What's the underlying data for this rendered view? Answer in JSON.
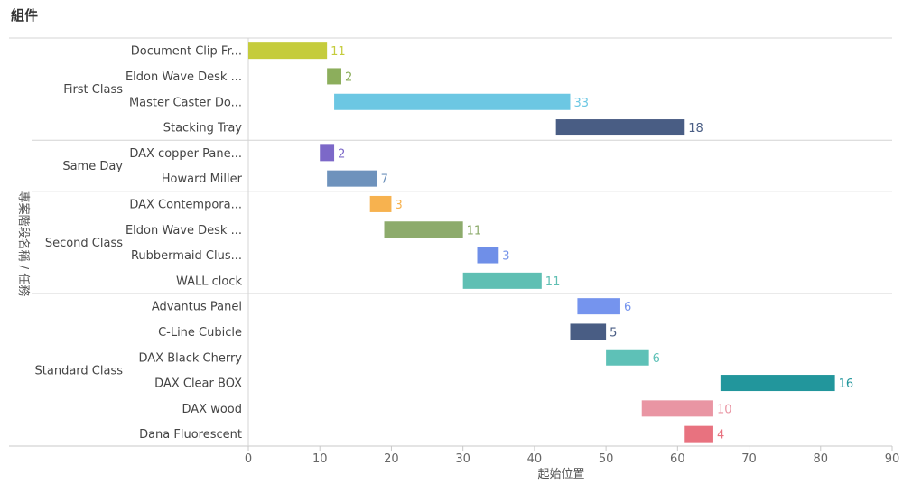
{
  "title": "組件",
  "chart_data": {
    "type": "bar",
    "subtype": "gantt",
    "xlabel": "起始位置",
    "ylabel": "專案階段名稱 / 任務",
    "xlim": [
      0,
      90
    ],
    "xticks": [
      0,
      10,
      20,
      30,
      40,
      50,
      60,
      70,
      80,
      90
    ],
    "groups": [
      {
        "name": "First Class",
        "tasks": [
          {
            "label": "Document Clip Fr...",
            "start": 0,
            "duration": 11,
            "color": "#c5cc3c"
          },
          {
            "label": "Eldon Wave Desk ...",
            "start": 11,
            "duration": 2,
            "color": "#8cae5c"
          },
          {
            "label": "Master Caster Do...",
            "start": 12,
            "duration": 33,
            "color": "#6cc7e3"
          },
          {
            "label": "Stacking Tray",
            "start": 43,
            "duration": 18,
            "color": "#495d84"
          }
        ]
      },
      {
        "name": "Same Day",
        "tasks": [
          {
            "label": "DAX copper Pane...",
            "start": 10,
            "duration": 2,
            "color": "#7c68c8"
          },
          {
            "label": "Howard Miller",
            "start": 11,
            "duration": 7,
            "color": "#6e92bc"
          }
        ]
      },
      {
        "name": "Second Class",
        "tasks": [
          {
            "label": "DAX Contempora...",
            "start": 17,
            "duration": 3,
            "color": "#f7b24f"
          },
          {
            "label": "Eldon Wave Desk ...",
            "start": 19,
            "duration": 11,
            "color": "#8dab6c"
          },
          {
            "label": "Rubbermaid Clus...",
            "start": 32,
            "duration": 3,
            "color": "#6f8fe8"
          },
          {
            "label": "WALL clock",
            "start": 30,
            "duration": 11,
            "color": "#5fbfb3"
          }
        ]
      },
      {
        "name": "Standard Class",
        "tasks": [
          {
            "label": "Advantus Panel",
            "start": 46,
            "duration": 6,
            "color": "#7594ee"
          },
          {
            "label": "C-Line Cubicle",
            "start": 45,
            "duration": 5,
            "color": "#495d84"
          },
          {
            "label": "DAX Black Cherry",
            "start": 50,
            "duration": 6,
            "color": "#5ec1b7"
          },
          {
            "label": "DAX Clear BOX",
            "start": 66,
            "duration": 16,
            "color": "#22969c"
          },
          {
            "label": "DAX wood",
            "start": 55,
            "duration": 10,
            "color": "#e995a3"
          },
          {
            "label": "Dana Fluorescent",
            "start": 61,
            "duration": 4,
            "color": "#e8727f"
          }
        ]
      }
    ]
  }
}
